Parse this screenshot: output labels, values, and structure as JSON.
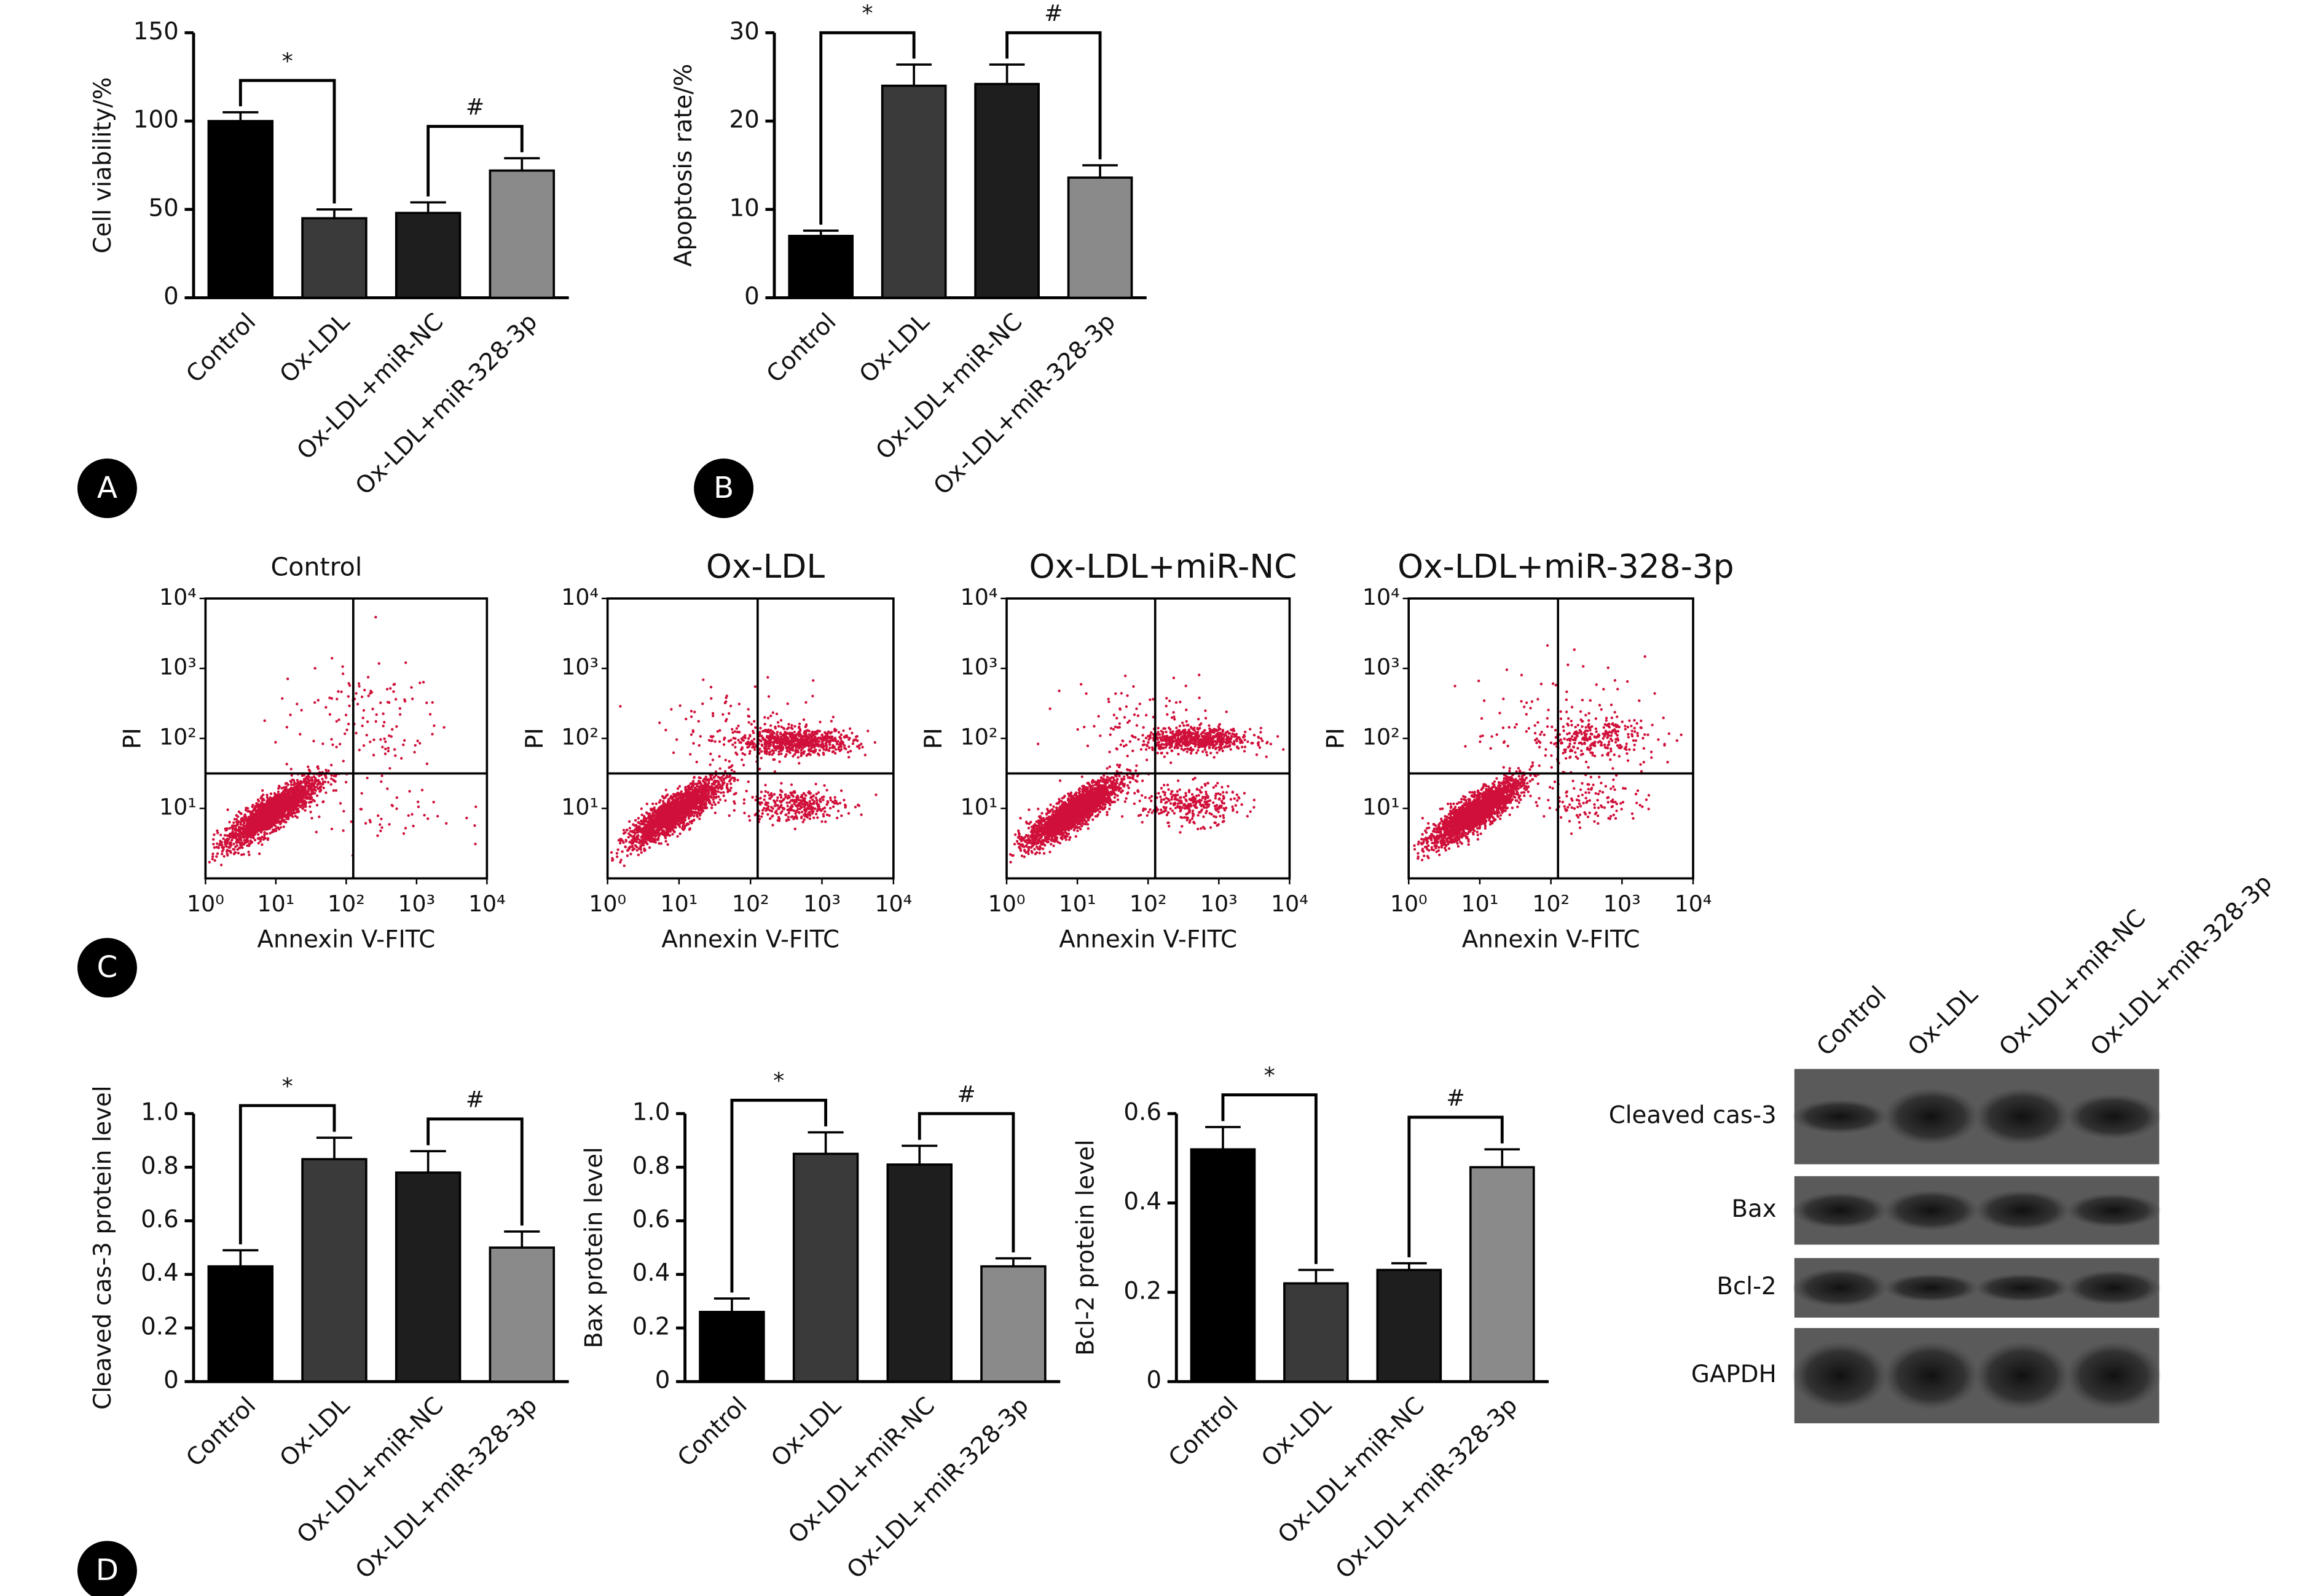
{
  "panel_labels": [
    "A",
    "B",
    "C",
    "D"
  ],
  "chart_data": [
    {
      "type": "bar",
      "ylabel": "Cell viability/%",
      "categories": [
        "Control",
        "Ox-LDL",
        "Ox-LDL+miR-NC",
        "Ox-LDL+miR-328-3p"
      ],
      "values": [
        100,
        45,
        48,
        72
      ],
      "errors": [
        5,
        5,
        6,
        7
      ],
      "colors": [
        "#000000",
        "#3a3a3a",
        "#1e1e1e",
        "#8a8a8a"
      ],
      "ylim": [
        0,
        150
      ],
      "yticks": [
        0,
        50,
        100,
        150
      ],
      "annotations": [
        "*",
        "#"
      ]
    },
    {
      "type": "bar",
      "ylabel": "Apoptosis rate/%",
      "categories": [
        "Control",
        "Ox-LDL",
        "Ox-LDL+miR-NC",
        "Ox-LDL+miR-328-3p"
      ],
      "values": [
        7,
        24,
        24.2,
        13.6
      ],
      "errors": [
        0.6,
        2.4,
        2.2,
        1.4
      ],
      "colors": [
        "#000000",
        "#3a3a3a",
        "#1e1e1e",
        "#8a8a8a"
      ],
      "ylim": [
        0,
        30
      ],
      "yticks": [
        0,
        10,
        20,
        30
      ],
      "annotations": [
        "*",
        "#"
      ]
    },
    {
      "type": "flow",
      "title": "Control",
      "xlabel": "Annexin V-FITC",
      "ylabel": "PI",
      "log": true,
      "color": "#d0103a",
      "xlim": [
        1,
        10000
      ],
      "ylim": [
        1,
        10000
      ],
      "xticks": [
        {
          "value": 1,
          "label": "10⁰"
        },
        {
          "value": 10,
          "label": "10¹"
        },
        {
          "value": 100,
          "label": "10²"
        },
        {
          "value": 1000,
          "label": "10³"
        },
        {
          "value": 10000,
          "label": "10⁴"
        }
      ],
      "yticks": [
        {
          "value": 10,
          "label": "10¹"
        },
        {
          "value": 100,
          "label": "10²"
        },
        {
          "value": 1000,
          "label": "10³"
        },
        {
          "value": 10000,
          "label": "10⁴"
        }
      ]
    },
    {
      "type": "flow",
      "title": "Ox-LDL",
      "xlabel": "Annexin V-FITC",
      "ylabel": "PI",
      "log": true,
      "color": "#d0103a",
      "xlim": [
        1,
        10000
      ],
      "ylim": [
        1,
        10000
      ],
      "xticks": [
        {
          "value": 1,
          "label": "10⁰"
        },
        {
          "value": 10,
          "label": "10¹"
        },
        {
          "value": 100,
          "label": "10²"
        },
        {
          "value": 1000,
          "label": "10³"
        },
        {
          "value": 10000,
          "label": "10⁴"
        }
      ],
      "yticks": [
        {
          "value": 10,
          "label": "10¹"
        },
        {
          "value": 100,
          "label": "10²"
        },
        {
          "value": 1000,
          "label": "10³"
        },
        {
          "value": 10000,
          "label": "10⁴"
        }
      ]
    },
    {
      "type": "flow",
      "title": "Ox-LDL+miR-NC",
      "xlabel": "Annexin V-FITC",
      "ylabel": "PI",
      "log": true,
      "color": "#d0103a",
      "xlim": [
        1,
        10000
      ],
      "ylim": [
        1,
        10000
      ],
      "xticks": [
        {
          "value": 1,
          "label": "10⁰"
        },
        {
          "value": 10,
          "label": "10¹"
        },
        {
          "value": 100,
          "label": "10²"
        },
        {
          "value": 1000,
          "label": "10³"
        },
        {
          "value": 10000,
          "label": "10⁴"
        }
      ],
      "yticks": [
        {
          "value": 10,
          "label": "10¹"
        },
        {
          "value": 100,
          "label": "10²"
        },
        {
          "value": 1000,
          "label": "10³"
        },
        {
          "value": 10000,
          "label": "10⁴"
        }
      ]
    },
    {
      "type": "flow",
      "title": "Ox-LDL+miR-328-3p",
      "xlabel": "Annexin V-FITC",
      "ylabel": "PI",
      "log": true,
      "color": "#d0103a",
      "xlim": [
        1,
        10000
      ],
      "ylim": [
        1,
        10000
      ],
      "xticks": [
        {
          "value": 1,
          "label": "10⁰"
        },
        {
          "value": 10,
          "label": "10¹"
        },
        {
          "value": 100,
          "label": "10²"
        },
        {
          "value": 1000,
          "label": "10³"
        },
        {
          "value": 10000,
          "label": "10⁴"
        }
      ],
      "yticks": [
        {
          "value": 10,
          "label": "10¹"
        },
        {
          "value": 100,
          "label": "10²"
        },
        {
          "value": 1000,
          "label": "10³"
        },
        {
          "value": 10000,
          "label": "10⁴"
        }
      ]
    },
    {
      "type": "bar",
      "ylabel": "Cleaved cas-3 protein level",
      "categories": [
        "Control",
        "Ox-LDL",
        "Ox-LDL+miR-NC",
        "Ox-LDL+miR-328-3p"
      ],
      "values": [
        0.43,
        0.83,
        0.78,
        0.5
      ],
      "errors": [
        0.06,
        0.08,
        0.08,
        0.06
      ],
      "colors": [
        "#000000",
        "#3a3a3a",
        "#1e1e1e",
        "#8a8a8a"
      ],
      "ylim": [
        0,
        1
      ],
      "yticks": [
        0,
        0.2,
        0.4,
        0.6,
        0.8,
        {
          "value": 1,
          "label": "1.0"
        }
      ],
      "annotations": [
        "*",
        "#"
      ]
    },
    {
      "type": "bar",
      "ylabel": "Bax protein level",
      "categories": [
        "Control",
        "Ox-LDL",
        "Ox-LDL+miR-NC",
        "Ox-LDL+miR-328-3p"
      ],
      "values": [
        0.26,
        0.85,
        0.81,
        0.43
      ],
      "errors": [
        0.05,
        0.08,
        0.07,
        0.03
      ],
      "colors": [
        "#000000",
        "#3a3a3a",
        "#1e1e1e",
        "#8a8a8a"
      ],
      "ylim": [
        0,
        1
      ],
      "yticks": [
        0,
        0.2,
        0.4,
        0.6,
        0.8,
        {
          "value": 1,
          "label": "1.0"
        }
      ],
      "annotations": [
        "*",
        "#"
      ]
    },
    {
      "type": "bar",
      "ylabel": "Bcl-2 protein level",
      "categories": [
        "Control",
        "Ox-LDL",
        "Ox-LDL+miR-NC",
        "Ox-LDL+miR-328-3p"
      ],
      "values": [
        0.52,
        0.22,
        0.25,
        0.48
      ],
      "errors": [
        0.05,
        0.03,
        0.015,
        0.04
      ],
      "colors": [
        "#000000",
        "#3a3a3a",
        "#1e1e1e",
        "#8a8a8a"
      ],
      "ylim": [
        0,
        0.6
      ],
      "yticks": [
        0,
        0.2,
        0.4,
        0.6
      ],
      "annotations": [
        "*",
        "#"
      ]
    }
  ],
  "blot": {
    "lanes": [
      "Control",
      "Ox-LDL",
      "Ox-LDL+miR-NC",
      "Ox-LDL+miR-328-3p"
    ],
    "rows": [
      "Cleaved cas-3",
      "Bax",
      "Bcl-2",
      "GAPDH"
    ]
  }
}
